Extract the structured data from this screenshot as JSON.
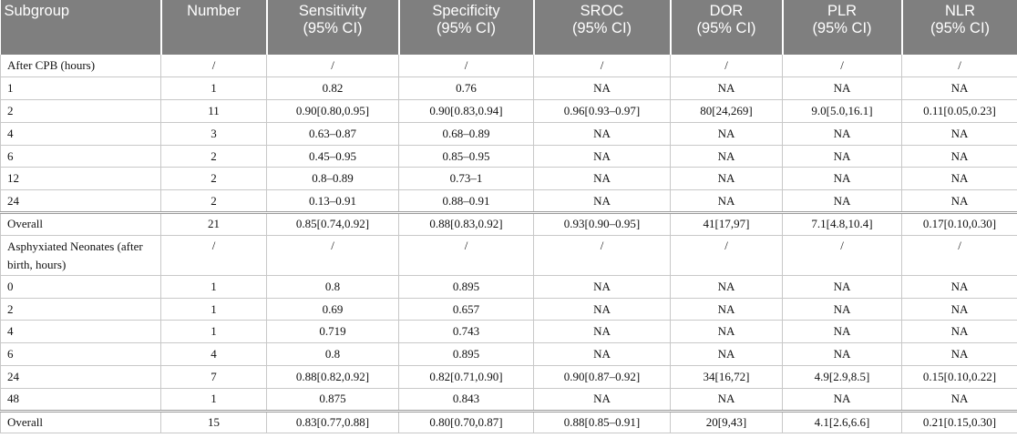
{
  "table": {
    "headers": [
      {
        "line1": "Subgroup",
        "line2": ""
      },
      {
        "line1": "Number",
        "line2": ""
      },
      {
        "line1": "Sensitivity",
        "line2": "(95% CI)"
      },
      {
        "line1": "Specificity",
        "line2": "(95% CI)"
      },
      {
        "line1": "SROC",
        "line2": "(95% CI)"
      },
      {
        "line1": "DOR",
        "line2": "(95% CI)"
      },
      {
        "line1": "PLR",
        "line2": "(95% CI)"
      },
      {
        "line1": "NLR",
        "line2": "(95% CI)"
      }
    ],
    "rows": [
      [
        "After CPB (hours)",
        "/",
        "/",
        "/",
        "/",
        "/",
        "/",
        "/"
      ],
      [
        "1",
        "1",
        "0.82",
        "0.76",
        "NA",
        "NA",
        "NA",
        "NA"
      ],
      [
        "2",
        "11",
        "0.90[0.80,0.95]",
        "0.90[0.83,0.94]",
        "0.96[0.93–0.97]",
        "80[24,269]",
        "9.0[5.0,16.1]",
        "0.11[0.05,0.23]"
      ],
      [
        "4",
        "3",
        "0.63–0.87",
        "0.68–0.89",
        "NA",
        "NA",
        "NA",
        "NA"
      ],
      [
        "6",
        "2",
        "0.45–0.95",
        "0.85–0.95",
        "NA",
        "NA",
        "NA",
        "NA"
      ],
      [
        "12",
        "2",
        "0.8–0.89",
        "0.73–1",
        "NA",
        "NA",
        "NA",
        "NA"
      ],
      [
        "24",
        "2",
        "0.13–0.91",
        "0.88–0.91",
        "NA",
        "NA",
        "NA",
        "NA"
      ],
      [
        "Overall",
        "21",
        "0.85[0.74,0.92]",
        "0.88[0.83,0.92]",
        "0.93[0.90–0.95]",
        "41[17,97]",
        "7.1[4.8,10.4]",
        "0.17[0.10,0.30]"
      ],
      [
        "Asphyxiated Neonates (after birth, hours)",
        "/",
        "/",
        "/",
        "/",
        "/",
        "/",
        "/"
      ],
      [
        "0",
        "1",
        "0.8",
        "0.895",
        "NA",
        "NA",
        "NA",
        "NA"
      ],
      [
        "2",
        "1",
        "0.69",
        "0.657",
        "NA",
        "NA",
        "NA",
        "NA"
      ],
      [
        "4",
        "1",
        "0.719",
        "0.743",
        "NA",
        "NA",
        "NA",
        "NA"
      ],
      [
        "6",
        "4",
        "0.8",
        "0.895",
        "NA",
        "NA",
        "NA",
        "NA"
      ],
      [
        "24",
        "7",
        "0.88[0.82,0.92]",
        "0.82[0.71,0.90]",
        "0.90[0.87–0.92]",
        "34[16,72]",
        "4.9[2.9,8.5]",
        "0.15[0.10,0.22]"
      ],
      [
        "48",
        "1",
        "0.875",
        "0.843",
        "NA",
        "NA",
        "NA",
        "NA"
      ],
      [
        "Overall",
        "15",
        "0.83[0.77,0.88]",
        "0.80[0.70,0.87]",
        "0.88[0.85–0.91]",
        "20[9,43]",
        "4.1[2.6,6.6]",
        "0.21[0.15,0.30]"
      ]
    ]
  },
  "colors": {
    "header_bg": "#7f7f7f",
    "header_text": "#ffffff",
    "grid_line": "#c8c8c8"
  }
}
